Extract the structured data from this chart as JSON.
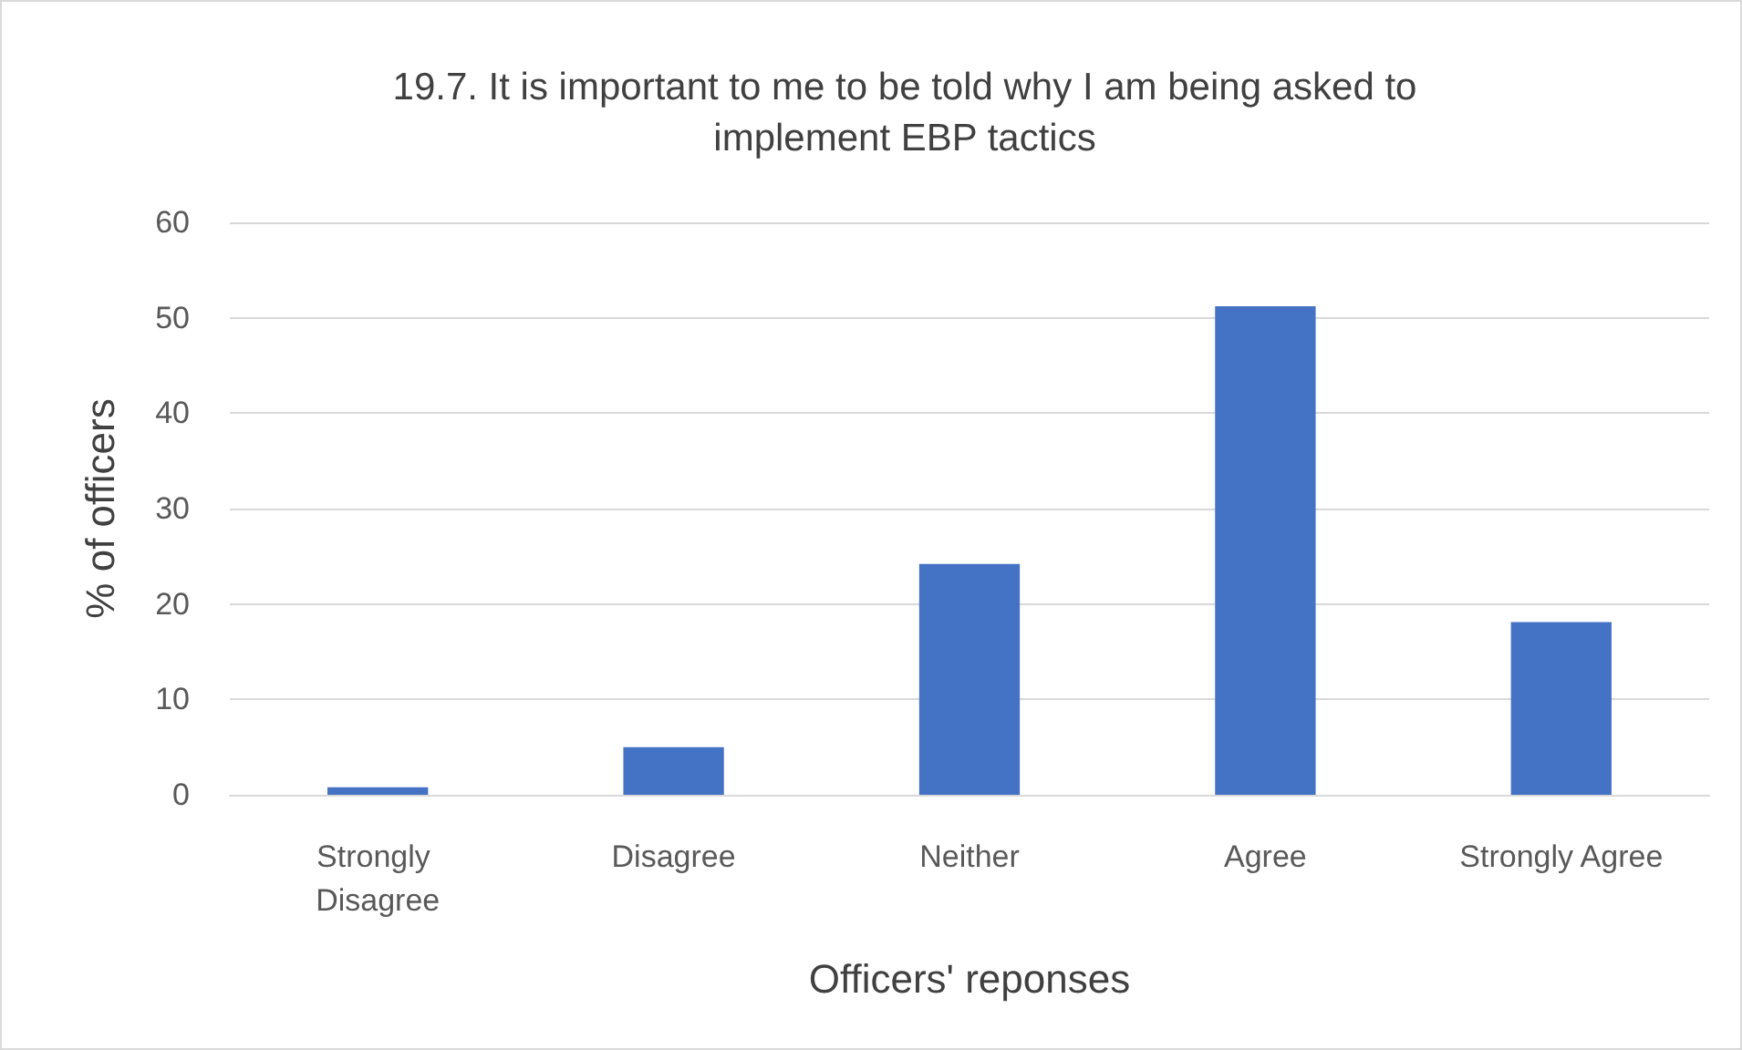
{
  "chart_data": {
    "type": "bar",
    "title": "19.7. It is important to me to be told why I am being asked to\nimplement EBP tactics",
    "xlabel": "Officers' reponses",
    "ylabel": "% of officers",
    "categories": [
      "Strongly Disagree",
      "Disagree",
      "Neither",
      "Agree",
      "Strongly Agree"
    ],
    "values": [
      0.8,
      5.0,
      24.2,
      51.2,
      18.1
    ],
    "color": "#4472c4",
    "ylim": [
      0,
      60
    ],
    "yticks": [
      0,
      10,
      20,
      30,
      40,
      50,
      60
    ],
    "grid": "y"
  }
}
